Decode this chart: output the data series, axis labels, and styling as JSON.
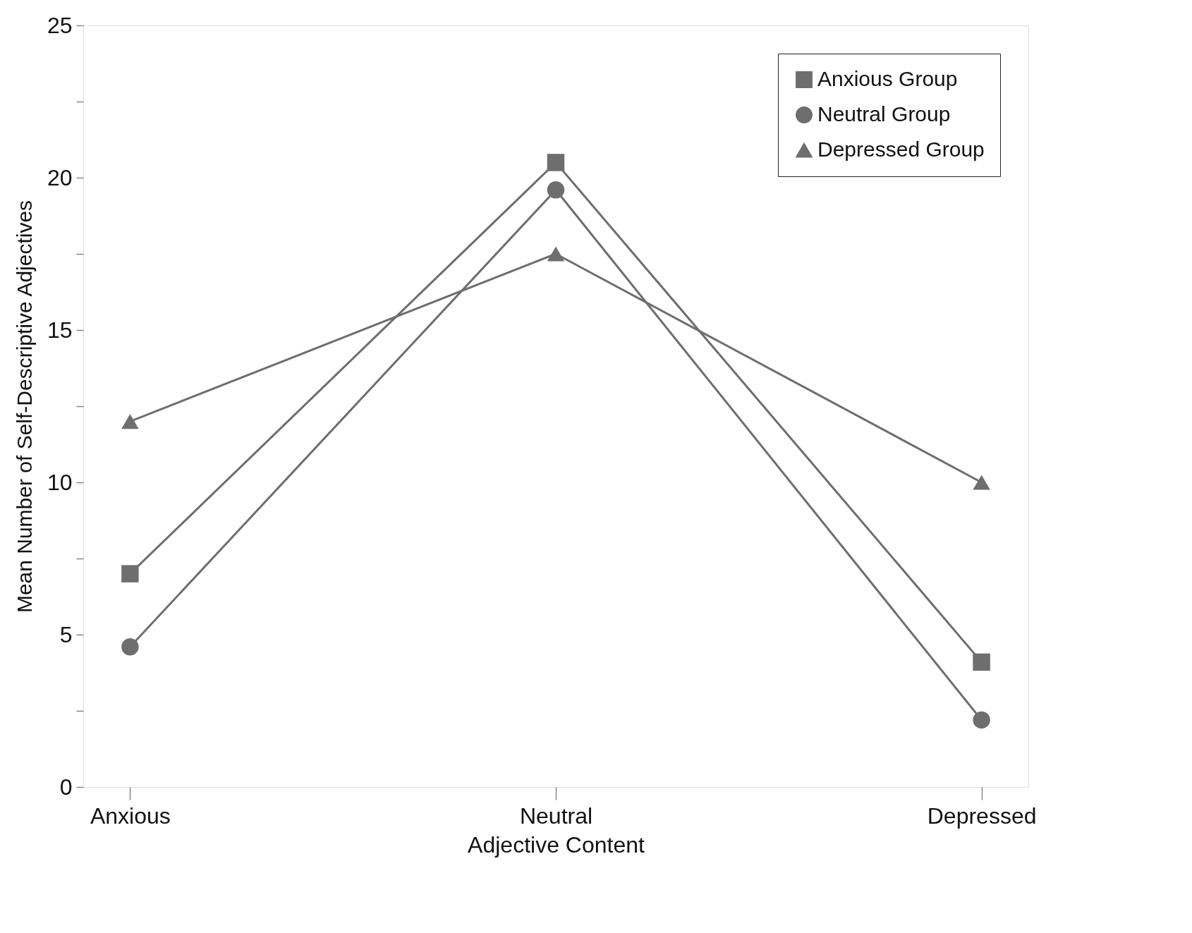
{
  "chart_data": {
    "type": "line",
    "xlabel": "Adjective Content",
    "ylabel": "Mean Number of Self-Descriptive Adjectives",
    "categories": [
      "Anxious",
      "Neutral",
      "Depressed"
    ],
    "series": [
      {
        "name": "Anxious Group",
        "color": "#6e6e6e",
        "marker": "square",
        "values": [
          7.0,
          20.5,
          4.1
        ]
      },
      {
        "name": "Neutral Group",
        "color": "#6e6e6e",
        "marker": "circle",
        "values": [
          4.6,
          19.6,
          2.2
        ]
      },
      {
        "name": "Depressed Group",
        "color": "#6e6e6e",
        "marker": "triangle",
        "values": [
          12.0,
          17.5,
          10.0
        ]
      }
    ],
    "ylim": [
      0,
      25
    ],
    "yticks": [
      0,
      {
        "value": 2.5,
        "label": null
      },
      5,
      {
        "value": 7.5,
        "label": null
      },
      10,
      {
        "value": 12.5,
        "label": null
      },
      15,
      {
        "value": 17.5,
        "label": null
      },
      20,
      {
        "value": 22.5,
        "label": null
      },
      25
    ],
    "grid": false,
    "legend": "top right",
    "line_style": "solid"
  }
}
